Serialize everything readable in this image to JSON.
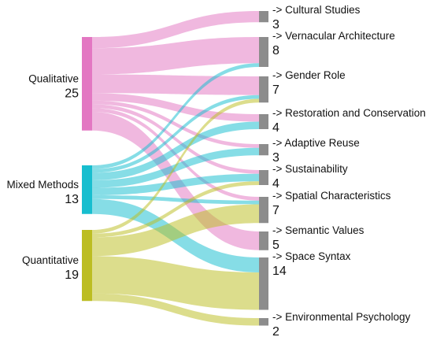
{
  "chart_data": {
    "type": "sankey",
    "sources": [
      {
        "label": "Qualitative",
        "value": "25",
        "total": 25,
        "color": "#e377c2"
      },
      {
        "label": "Mixed Methods",
        "value": "13",
        "total": 13,
        "color": "#17becf"
      },
      {
        "label": "Quantitative",
        "value": "19",
        "total": 19,
        "color": "#bcbd22"
      }
    ],
    "targets": [
      {
        "label": "-> Cultural Studies",
        "value": "3",
        "total": 3
      },
      {
        "label": "-> Vernacular Architecture",
        "value": "8",
        "total": 8
      },
      {
        "label": "-> Gender Role",
        "value": "7",
        "total": 7
      },
      {
        "label": "-> Restoration and Conservation",
        "value": "4",
        "total": 4
      },
      {
        "label": "-> Adaptive Reuse",
        "value": "3",
        "total": 3
      },
      {
        "label": "-> Sustainability",
        "value": "4",
        "total": 4
      },
      {
        "label": "-> Spatial Characteristics",
        "value": "7",
        "total": 7
      },
      {
        "label": "-> Semantic Values",
        "value": "5",
        "total": 5
      },
      {
        "label": "-> Space Syntax",
        "value": "14",
        "total": 14
      },
      {
        "label": "-> Environmental Psychology",
        "value": "2",
        "total": 2
      }
    ],
    "target_node_color": "#8c8c8c",
    "flows": [
      {
        "source": 0,
        "target": 0,
        "value": 3
      },
      {
        "source": 0,
        "target": 1,
        "value": 7
      },
      {
        "source": 0,
        "target": 2,
        "value": 5
      },
      {
        "source": 0,
        "target": 3,
        "value": 2
      },
      {
        "source": 0,
        "target": 4,
        "value": 1
      },
      {
        "source": 0,
        "target": 5,
        "value": 1
      },
      {
        "source": 0,
        "target": 6,
        "value": 1
      },
      {
        "source": 0,
        "target": 7,
        "value": 5
      },
      {
        "source": 1,
        "target": 1,
        "value": 1
      },
      {
        "source": 1,
        "target": 2,
        "value": 1
      },
      {
        "source": 1,
        "target": 3,
        "value": 2
      },
      {
        "source": 1,
        "target": 4,
        "value": 2
      },
      {
        "source": 1,
        "target": 5,
        "value": 2
      },
      {
        "source": 1,
        "target": 6,
        "value": 1
      },
      {
        "source": 1,
        "target": 8,
        "value": 4
      },
      {
        "source": 2,
        "target": 2,
        "value": 1
      },
      {
        "source": 2,
        "target": 5,
        "value": 1
      },
      {
        "source": 2,
        "target": 6,
        "value": 5
      },
      {
        "source": 2,
        "target": 8,
        "value": 10
      },
      {
        "source": 2,
        "target": 9,
        "value": 2
      }
    ]
  }
}
